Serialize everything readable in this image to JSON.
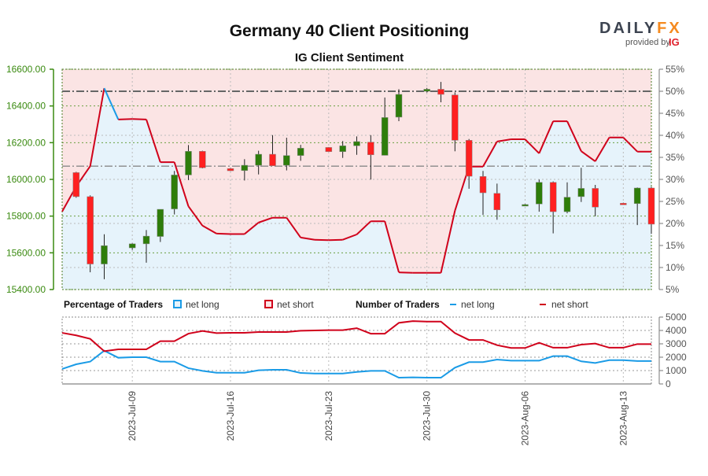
{
  "header": {
    "title": "Germany 40 Client Positioning",
    "subtitle": "IG Client Sentiment"
  },
  "logo": {
    "brand": "DAILYFX",
    "provided_by": "provided by",
    "ig": "IG"
  },
  "legend": {
    "pct_title": "Percentage of Traders",
    "pct_long": "net long",
    "pct_short": "net short",
    "num_title": "Number of Traders",
    "num_long": "net long",
    "num_short": "net short"
  },
  "colors": {
    "long": "#1a9be6",
    "short": "#d0021b",
    "long_fill": "#e6f3fb",
    "short_fill": "#fbe4e4",
    "bull": "#2e7d0a",
    "bear": "#ff2020",
    "price_axis": "#3a8a10"
  },
  "chart_data": [
    {
      "type": "candlestick+area",
      "title": "Germany 40 Client Positioning",
      "subtitle": "IG Client Sentiment",
      "y_left": {
        "range": [
          15400,
          16600
        ],
        "ticks": [
          "15400.00",
          "15600.00",
          "15800.00",
          "16000.00",
          "16200.00",
          "16400.00",
          "16600.00"
        ]
      },
      "y_right": {
        "range": [
          5,
          55
        ],
        "ticks": [
          "5%",
          "10%",
          "15%",
          "20%",
          "25%",
          "30%",
          "35%",
          "40%",
          "45%",
          "50%",
          "55%"
        ]
      },
      "x_ticks": [
        "2023-Jul-09",
        "2023-Jul-16",
        "2023-Jul-23",
        "2023-Jul-30",
        "2023-Aug-06",
        "2023-Aug-13"
      ],
      "x_tick_dates": [
        "2023-07-09",
        "2023-07-16",
        "2023-07-23",
        "2023-07-30",
        "2023-08-06",
        "2023-08-13"
      ],
      "reference_lines_pct": [
        50,
        33
      ],
      "grid": true,
      "dates": [
        "2023-07-04",
        "2023-07-05",
        "2023-07-06",
        "2023-07-07",
        "2023-07-08",
        "2023-07-09",
        "2023-07-10",
        "2023-07-11",
        "2023-07-12",
        "2023-07-13",
        "2023-07-14",
        "2023-07-15",
        "2023-07-16",
        "2023-07-17",
        "2023-07-18",
        "2023-07-19",
        "2023-07-20",
        "2023-07-21",
        "2023-07-22",
        "2023-07-23",
        "2023-07-24",
        "2023-07-25",
        "2023-07-26",
        "2023-07-27",
        "2023-07-28",
        "2023-07-29",
        "2023-07-30",
        "2023-07-31",
        "2023-08-01",
        "2023-08-02",
        "2023-08-03",
        "2023-08-04",
        "2023-08-05",
        "2023-08-06",
        "2023-08-07",
        "2023-08-08",
        "2023-08-09",
        "2023-08-10",
        "2023-08-11",
        "2023-08-12",
        "2023-08-13",
        "2023-08-14",
        "2023-08-15"
      ],
      "net_long_pct": [
        22.7,
        28.4,
        33.0,
        50.7,
        43.6,
        43.7,
        43.6,
        33.9,
        33.9,
        23.9,
        19.5,
        17.7,
        17.6,
        17.6,
        20.2,
        21.3,
        21.3,
        16.8,
        16.3,
        16.2,
        16.3,
        17.5,
        20.5,
        20.5,
        8.9,
        8.8,
        8.8,
        8.8,
        22.9,
        32.9,
        32.9,
        38.6,
        39.1,
        39.1,
        35.9,
        43.2,
        43.2,
        36.4,
        34.1,
        39.5,
        39.5,
        36.3,
        36.3
      ],
      "candles": [
        [
          "2023-07-05",
          16037,
          16041,
          15900,
          15906
        ],
        [
          "2023-07-06",
          15906,
          15913,
          15494,
          15539
        ],
        [
          "2023-07-07",
          15539,
          15701,
          15456,
          15639
        ],
        [
          "2023-07-09",
          15627,
          15652,
          15616,
          15649
        ],
        [
          "2023-07-10",
          15649,
          15724,
          15546,
          15691
        ],
        [
          "2023-07-11",
          15689,
          15837,
          15659,
          15837
        ],
        [
          "2023-07-12",
          15839,
          16046,
          15809,
          16024
        ],
        [
          "2023-07-13",
          16024,
          16187,
          15996,
          16153
        ],
        [
          "2023-07-14",
          16153,
          16156,
          16060,
          16063
        ],
        [
          "2023-07-16",
          16059,
          16062,
          16045,
          16047
        ],
        [
          "2023-07-17",
          16048,
          16110,
          15994,
          16077
        ],
        [
          "2023-07-18",
          16077,
          16156,
          16027,
          16137
        ],
        [
          "2023-07-19",
          16137,
          16241,
          16074,
          16074
        ],
        [
          "2023-07-20",
          16077,
          16227,
          16049,
          16130
        ],
        [
          "2023-07-21",
          16130,
          16188,
          16101,
          16170
        ],
        [
          "2023-07-23",
          16174,
          16176,
          16150,
          16151
        ],
        [
          "2023-07-24",
          16151,
          16209,
          16117,
          16183
        ],
        [
          "2023-07-25",
          16183,
          16234,
          16134,
          16206
        ],
        [
          "2023-07-26",
          16203,
          16241,
          15999,
          16134
        ],
        [
          "2023-07-27",
          16131,
          16446,
          16131,
          16337
        ],
        [
          "2023-07-28",
          16339,
          16491,
          16317,
          16463
        ],
        [
          "2023-07-30",
          16480,
          16498,
          16473,
          16491
        ],
        [
          "2023-07-31",
          16491,
          16531,
          16420,
          16463
        ],
        [
          "2023-08-01",
          16460,
          16474,
          16153,
          16213
        ],
        [
          "2023-08-02",
          16213,
          16220,
          15949,
          16017
        ],
        [
          "2023-08-03",
          16016,
          16046,
          15806,
          15927
        ],
        [
          "2023-08-04",
          15924,
          15977,
          15780,
          15834
        ],
        [
          "2023-08-06",
          15862,
          15866,
          15860,
          15863
        ],
        [
          "2023-08-07",
          15866,
          15999,
          15824,
          15984
        ],
        [
          "2023-08-08",
          15984,
          15989,
          15706,
          15824
        ],
        [
          "2023-08-09",
          15824,
          15984,
          15815,
          15903
        ],
        [
          "2023-08-10",
          15906,
          16063,
          15877,
          15951
        ],
        [
          "2023-08-11",
          15951,
          15970,
          15799,
          15849
        ],
        [
          "2023-08-13",
          15870,
          15873,
          15864,
          15868
        ],
        [
          "2023-08-14",
          15868,
          15956,
          15751,
          15953
        ],
        [
          "2023-08-15",
          15953,
          15960,
          15703,
          15756
        ]
      ]
    },
    {
      "type": "line",
      "y_range": [
        0,
        5000
      ],
      "y_ticks": [
        "0",
        "1000",
        "2000",
        "3000",
        "4000",
        "5000"
      ],
      "grid": true,
      "series": [
        {
          "name": "net long",
          "color": "#1a9be6",
          "values": [
            1120,
            1470,
            1670,
            2490,
            1960,
            2000,
            2000,
            1670,
            1670,
            1180,
            980,
            840,
            840,
            840,
            1020,
            1060,
            1060,
            820,
            780,
            780,
            780,
            900,
            980,
            980,
            470,
            490,
            470,
            470,
            1220,
            1630,
            1630,
            1820,
            1740,
            1740,
            1740,
            2080,
            2080,
            1690,
            1570,
            1780,
            1780,
            1710,
            1710
          ]
        },
        {
          "name": "net short",
          "color": "#d0021b",
          "values": [
            3820,
            3630,
            3370,
            2450,
            2590,
            2590,
            2590,
            3200,
            3200,
            3760,
            3960,
            3800,
            3820,
            3820,
            3880,
            3880,
            3880,
            3980,
            4000,
            4020,
            4020,
            4170,
            3760,
            3760,
            4570,
            4700,
            4660,
            4660,
            3800,
            3290,
            3290,
            2900,
            2690,
            2690,
            3080,
            2710,
            2710,
            2940,
            3020,
            2710,
            2710,
            2980,
            2980
          ]
        }
      ]
    }
  ]
}
